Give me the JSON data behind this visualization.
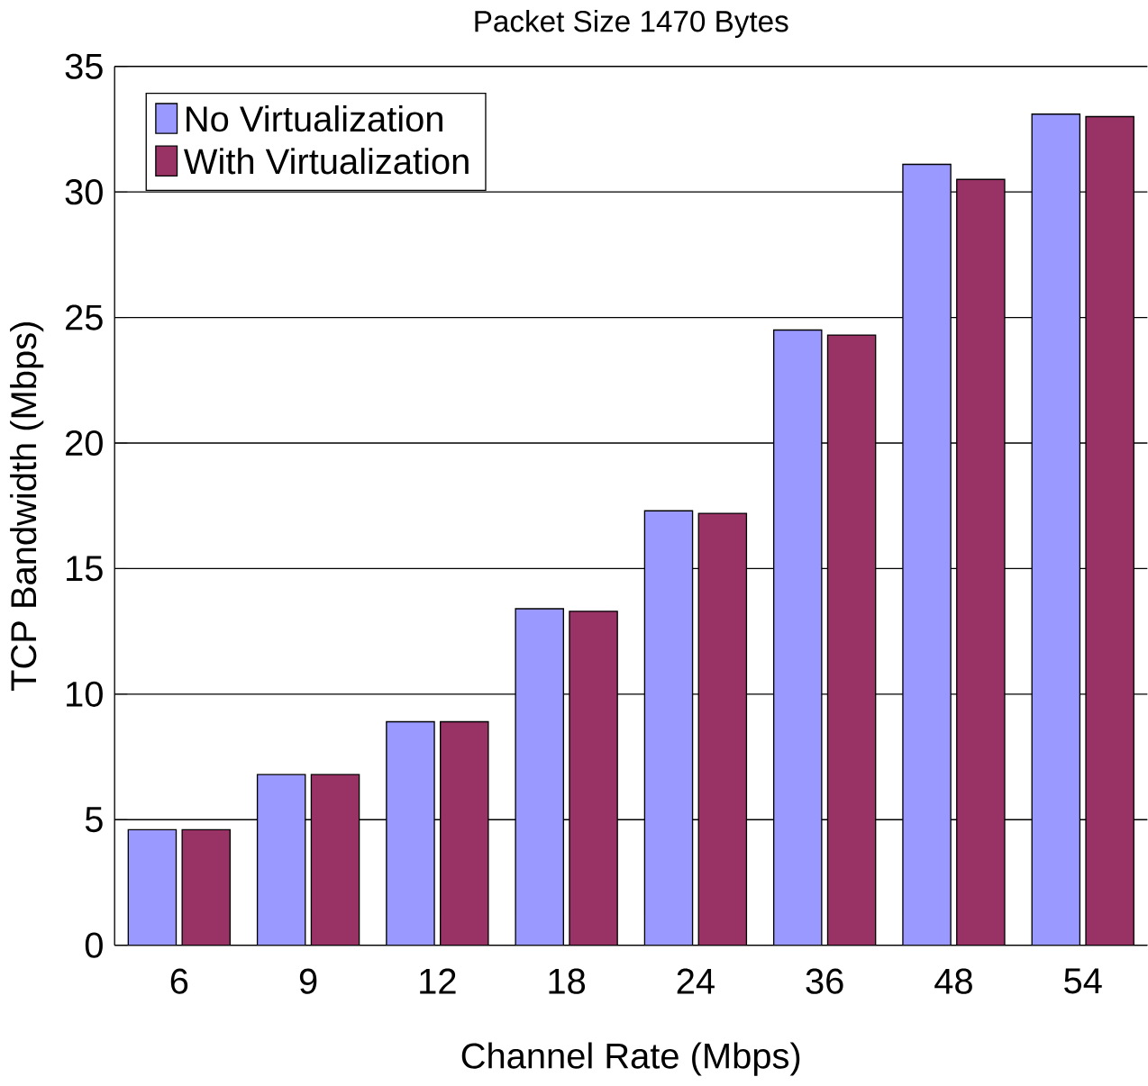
{
  "chart_data": {
    "type": "bar",
    "title": "Packet Size 1470 Bytes",
    "xlabel": "Channel Rate (Mbps)",
    "ylabel": "TCP Bandwidth (Mbps)",
    "categories": [
      "6",
      "9",
      "12",
      "18",
      "24",
      "36",
      "48",
      "54"
    ],
    "series": [
      {
        "name": "No Virtualization",
        "color": "#9999ff",
        "values": [
          4.6,
          6.8,
          8.9,
          13.4,
          17.3,
          24.5,
          31.1,
          33.1
        ]
      },
      {
        "name": "With Virtualization",
        "color": "#993366",
        "values": [
          4.6,
          6.8,
          8.9,
          13.3,
          17.2,
          24.3,
          30.5,
          33.0
        ]
      }
    ],
    "ylim": [
      0,
      35
    ],
    "yticks": [
      0,
      5,
      10,
      15,
      20,
      25,
      30,
      35
    ],
    "grid": "y",
    "legend": "top left"
  }
}
